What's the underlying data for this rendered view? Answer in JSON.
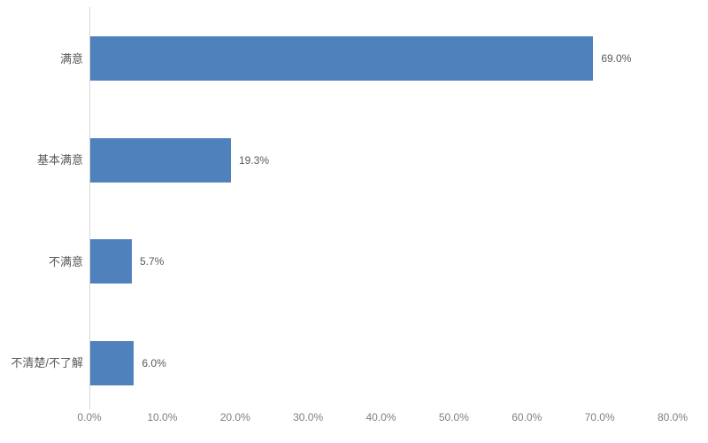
{
  "chart_data": {
    "type": "bar",
    "orientation": "horizontal",
    "title": "",
    "categories": [
      "满意",
      "基本满意",
      "不满意",
      "不清楚/不了解"
    ],
    "values": [
      69.0,
      19.3,
      5.7,
      6.0
    ],
    "value_labels": [
      "69.0%",
      "19.3%",
      "5.7%",
      "6.0%"
    ],
    "xlim": [
      0,
      80
    ],
    "x_ticks": [
      {
        "value": 0,
        "label": "0.0%"
      },
      {
        "value": 10,
        "label": "10.0%"
      },
      {
        "value": 20,
        "label": "20.0%"
      },
      {
        "value": 30,
        "label": "30.0%"
      },
      {
        "value": 40,
        "label": "40.0%"
      },
      {
        "value": 50,
        "label": "50.0%"
      },
      {
        "value": 60,
        "label": "60.0%"
      },
      {
        "value": 70,
        "label": "70.0%"
      },
      {
        "value": 80,
        "label": "80.0%"
      }
    ],
    "grid": false,
    "legend": false,
    "colors": {
      "bar": "#4F81BD",
      "axis_line": "#D6D6D6",
      "category_label": "#595959",
      "value_label": "#595959",
      "tick_label": "#7F7F7F",
      "background": "#FFFFFF"
    }
  }
}
